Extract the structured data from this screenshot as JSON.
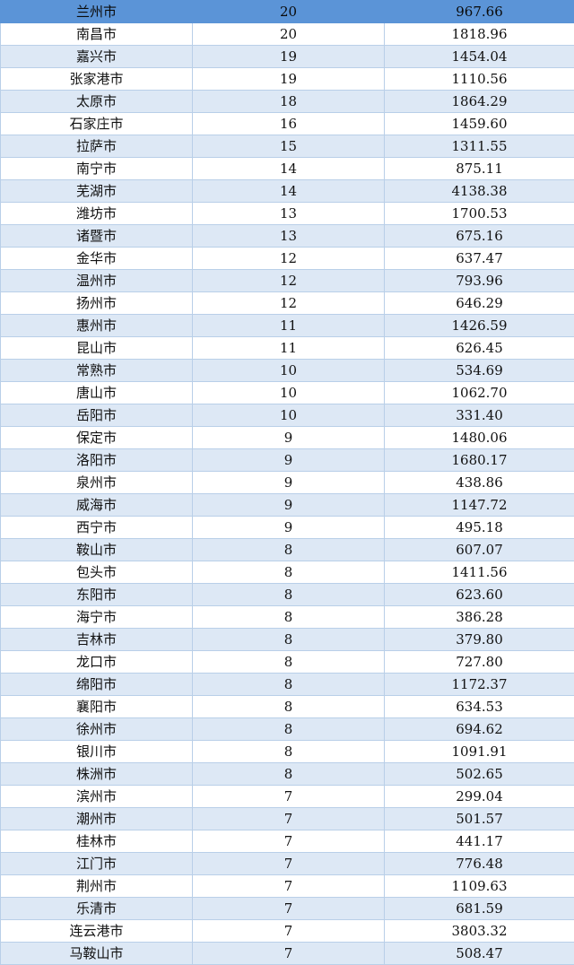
{
  "colors": {
    "highlight": "#5b94d7",
    "stripe": "#dde8f5",
    "grid": "#b9cfe8",
    "white": "#ffffff"
  },
  "rows": [
    {
      "city": "兰州市",
      "count": "20",
      "value": "967.66",
      "highlight": true
    },
    {
      "city": "南昌市",
      "count": "20",
      "value": "1818.96"
    },
    {
      "city": "嘉兴市",
      "count": "19",
      "value": "1454.04"
    },
    {
      "city": "张家港市",
      "count": "19",
      "value": "1110.56"
    },
    {
      "city": "太原市",
      "count": "18",
      "value": "1864.29"
    },
    {
      "city": "石家庄市",
      "count": "16",
      "value": "1459.60"
    },
    {
      "city": "拉萨市",
      "count": "15",
      "value": "1311.55"
    },
    {
      "city": "南宁市",
      "count": "14",
      "value": "875.11"
    },
    {
      "city": "芜湖市",
      "count": "14",
      "value": "4138.38"
    },
    {
      "city": "潍坊市",
      "count": "13",
      "value": "1700.53"
    },
    {
      "city": "诸暨市",
      "count": "13",
      "value": "675.16"
    },
    {
      "city": "金华市",
      "count": "12",
      "value": "637.47"
    },
    {
      "city": "温州市",
      "count": "12",
      "value": "793.96"
    },
    {
      "city": "扬州市",
      "count": "12",
      "value": "646.29"
    },
    {
      "city": "惠州市",
      "count": "11",
      "value": "1426.59"
    },
    {
      "city": "昆山市",
      "count": "11",
      "value": "626.45"
    },
    {
      "city": "常熟市",
      "count": "10",
      "value": "534.69"
    },
    {
      "city": "唐山市",
      "count": "10",
      "value": "1062.70"
    },
    {
      "city": "岳阳市",
      "count": "10",
      "value": "331.40"
    },
    {
      "city": "保定市",
      "count": "9",
      "value": "1480.06"
    },
    {
      "city": "洛阳市",
      "count": "9",
      "value": "1680.17"
    },
    {
      "city": "泉州市",
      "count": "9",
      "value": "438.86"
    },
    {
      "city": "威海市",
      "count": "9",
      "value": "1147.72"
    },
    {
      "city": "西宁市",
      "count": "9",
      "value": "495.18"
    },
    {
      "city": "鞍山市",
      "count": "8",
      "value": "607.07"
    },
    {
      "city": "包头市",
      "count": "8",
      "value": "1411.56"
    },
    {
      "city": "东阳市",
      "count": "8",
      "value": "623.60"
    },
    {
      "city": "海宁市",
      "count": "8",
      "value": "386.28"
    },
    {
      "city": "吉林市",
      "count": "8",
      "value": "379.80"
    },
    {
      "city": "龙口市",
      "count": "8",
      "value": "727.80"
    },
    {
      "city": "绵阳市",
      "count": "8",
      "value": "1172.37"
    },
    {
      "city": "襄阳市",
      "count": "8",
      "value": "634.53"
    },
    {
      "city": "徐州市",
      "count": "8",
      "value": "694.62"
    },
    {
      "city": "银川市",
      "count": "8",
      "value": "1091.91"
    },
    {
      "city": "株洲市",
      "count": "8",
      "value": "502.65"
    },
    {
      "city": "滨州市",
      "count": "7",
      "value": "299.04"
    },
    {
      "city": "潮州市",
      "count": "7",
      "value": "501.57"
    },
    {
      "city": "桂林市",
      "count": "7",
      "value": "441.17"
    },
    {
      "city": "江门市",
      "count": "7",
      "value": "776.48"
    },
    {
      "city": "荆州市",
      "count": "7",
      "value": "1109.63"
    },
    {
      "city": "乐清市",
      "count": "7",
      "value": "681.59"
    },
    {
      "city": "连云港市",
      "count": "7",
      "value": "3803.32"
    },
    {
      "city": "马鞍山市",
      "count": "7",
      "value": "508.47"
    }
  ]
}
